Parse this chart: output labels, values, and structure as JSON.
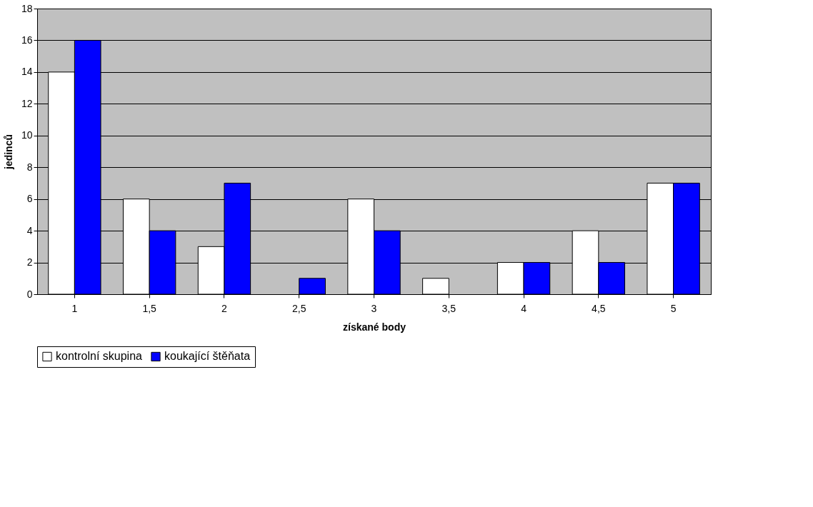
{
  "chart_data": {
    "type": "bar",
    "xlabel": "získané body",
    "ylabel": "jedinců",
    "categories": [
      "1",
      "1,5",
      "2",
      "2,5",
      "3",
      "3,5",
      "4",
      "4,5",
      "5"
    ],
    "series": [
      {
        "name": "kontrolní skupina",
        "color": "#ffffff",
        "values": [
          14,
          6,
          3,
          0,
          6,
          1,
          2,
          4,
          7
        ]
      },
      {
        "name": "koukající štěňata",
        "color": "#0000ff",
        "values": [
          16,
          4,
          7,
          1,
          4,
          0,
          2,
          2,
          7
        ]
      }
    ],
    "ylim": [
      0,
      18
    ],
    "yticks": [
      0,
      2,
      4,
      6,
      8,
      10,
      12,
      14,
      16,
      18
    ],
    "grid": "y",
    "legend": "bottom"
  }
}
